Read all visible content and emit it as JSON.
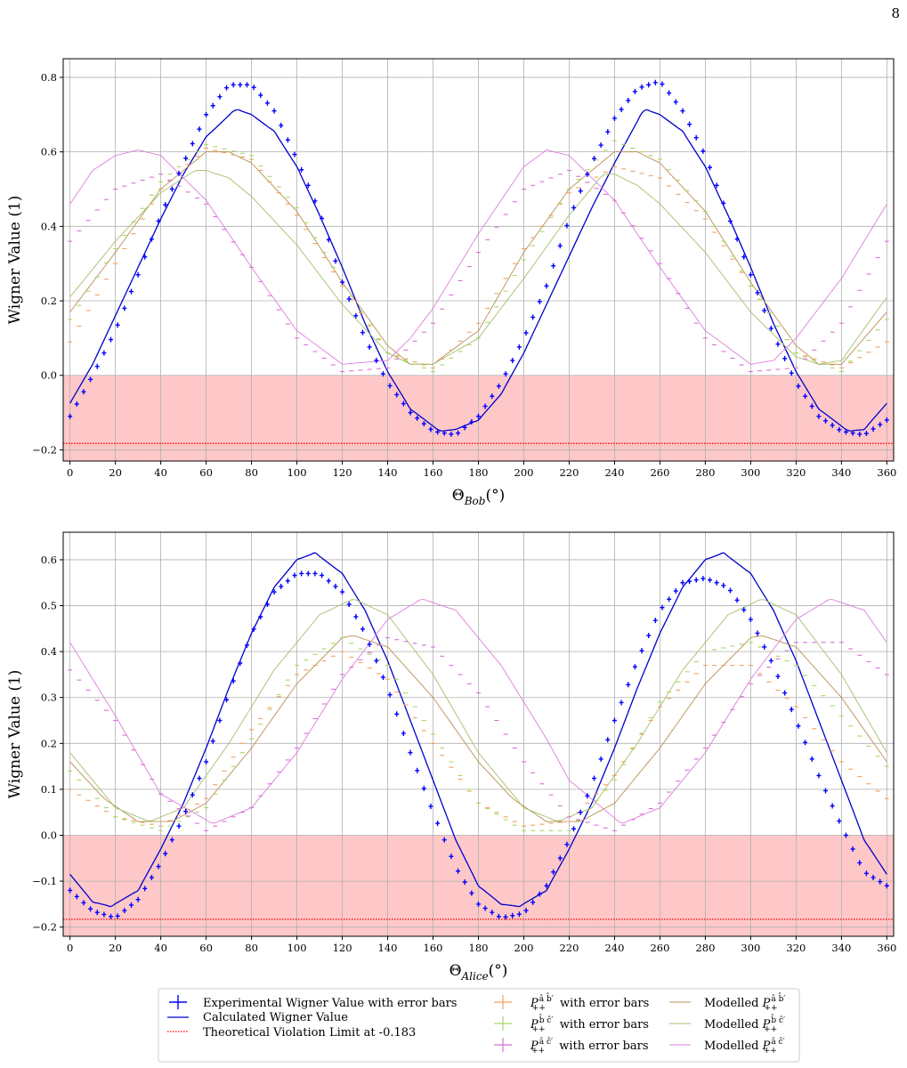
{
  "page": {
    "number": "8"
  },
  "colors": {
    "experimental": "#0000ff",
    "calculated": "#0000cc",
    "limit": "#ff0000",
    "violation_region": "#ffc8c8",
    "ab": "#f0a060",
    "bc": "#a8d860",
    "ac": "#d86fd8",
    "model_ab": "#b8904f",
    "model_bc": "#a4bf6a",
    "model_ac": "#dd7ddd"
  },
  "legend": {
    "experimental": "Experimental Wigner Value with error bars",
    "calculated": "Calculated Wigner Value",
    "limit": "Theoretical Violation Limit at -0.183",
    "ab_points": " with error bars",
    "bc_points": " with error bars",
    "ac_points": " with error bars",
    "model_ab": "Modelled ",
    "model_bc": "Modelled ",
    "model_ac": "Modelled ",
    "p_ab": "â b̂′",
    "p_bc": "b̂ ĉ′",
    "p_ac": "â ĉ′"
  },
  "chart_data": [
    {
      "type": "line",
      "xlabel": "Θ",
      "xlabel_sub": "Bob",
      "xlabel_unit": "(°)",
      "ylabel": "Wigner Value (1)",
      "xlim": [
        -3,
        363
      ],
      "ylim": [
        -0.23,
        0.85
      ],
      "xticks": [
        0,
        20,
        40,
        60,
        80,
        100,
        120,
        140,
        160,
        180,
        200,
        220,
        240,
        260,
        280,
        300,
        320,
        340,
        360
      ],
      "yticks": [
        -0.2,
        0.0,
        0.2,
        0.4,
        0.6,
        0.8
      ],
      "ytick_labels": [
        "−0.2",
        "0.0",
        "0.2",
        "0.4",
        "0.6",
        "0.8"
      ],
      "grid": true,
      "violation_region": [
        -0.23,
        0.0
      ],
      "violation_limit": -0.183,
      "series": [
        {
          "key": "calculated",
          "kind": "line",
          "x": [
            0,
            10,
            20,
            30,
            40,
            50,
            60,
            73,
            80,
            90,
            100,
            110,
            120,
            130,
            140,
            150,
            163,
            170,
            180,
            190,
            200,
            210,
            220,
            230,
            240,
            253,
            260,
            270,
            280,
            290,
            300,
            310,
            320,
            330,
            343,
            350,
            360
          ],
          "y": [
            -0.075,
            0.03,
            0.16,
            0.29,
            0.42,
            0.54,
            0.64,
            0.715,
            0.7,
            0.655,
            0.56,
            0.43,
            0.29,
            0.14,
            0.01,
            -0.09,
            -0.15,
            -0.145,
            -0.12,
            -0.05,
            0.06,
            0.19,
            0.32,
            0.45,
            0.57,
            0.715,
            0.7,
            0.655,
            0.56,
            0.43,
            0.29,
            0.14,
            0.01,
            -0.09,
            -0.15,
            -0.145,
            -0.075
          ]
        },
        {
          "key": "model_ab",
          "kind": "line",
          "x": [
            0,
            20,
            40,
            60,
            70,
            80,
            100,
            120,
            140,
            150,
            160,
            180,
            200,
            220,
            240,
            250,
            260,
            280,
            300,
            320,
            330,
            340,
            360
          ],
          "y": [
            0.17,
            0.33,
            0.5,
            0.6,
            0.6,
            0.57,
            0.44,
            0.25,
            0.08,
            0.03,
            0.03,
            0.12,
            0.33,
            0.5,
            0.6,
            0.6,
            0.57,
            0.44,
            0.25,
            0.08,
            0.03,
            0.03,
            0.17
          ]
        },
        {
          "key": "model_bc",
          "kind": "line",
          "x": [
            0,
            20,
            40,
            55,
            60,
            70,
            80,
            100,
            120,
            140,
            150,
            160,
            180,
            200,
            220,
            235,
            240,
            250,
            260,
            280,
            300,
            320,
            330,
            340,
            360
          ],
          "y": [
            0.21,
            0.36,
            0.49,
            0.55,
            0.55,
            0.53,
            0.48,
            0.35,
            0.19,
            0.06,
            0.03,
            0.03,
            0.1,
            0.26,
            0.43,
            0.54,
            0.54,
            0.51,
            0.46,
            0.33,
            0.17,
            0.05,
            0.03,
            0.04,
            0.21
          ]
        },
        {
          "key": "model_ac",
          "kind": "line",
          "x": [
            0,
            10,
            20,
            30,
            40,
            60,
            80,
            100,
            120,
            140,
            150,
            160,
            180,
            200,
            210,
            220,
            240,
            260,
            280,
            300,
            310,
            320,
            340,
            360
          ],
          "y": [
            0.46,
            0.55,
            0.59,
            0.605,
            0.59,
            0.47,
            0.29,
            0.12,
            0.03,
            0.04,
            0.1,
            0.18,
            0.38,
            0.56,
            0.605,
            0.59,
            0.47,
            0.29,
            0.12,
            0.03,
            0.04,
            0.1,
            0.26,
            0.46
          ]
        },
        {
          "key": "ab",
          "kind": "errorbar",
          "x": [
            0,
            20,
            40,
            60,
            80,
            100,
            120,
            140,
            160,
            180,
            200,
            220,
            240,
            260,
            280,
            300,
            320,
            340,
            360
          ],
          "y": [
            0.09,
            0.3,
            0.5,
            0.61,
            0.58,
            0.43,
            0.24,
            0.06,
            0.02,
            0.14,
            0.34,
            0.49,
            0.56,
            0.53,
            0.42,
            0.24,
            0.06,
            0.02,
            0.09
          ]
        },
        {
          "key": "bc",
          "kind": "errorbar",
          "x": [
            0,
            20,
            40,
            60,
            80,
            100,
            120,
            140,
            160,
            180,
            200,
            220,
            240,
            260,
            280,
            300,
            320,
            340,
            360
          ],
          "y": [
            0.15,
            0.34,
            0.52,
            0.62,
            0.59,
            0.45,
            0.25,
            0.06,
            0.01,
            0.1,
            0.31,
            0.5,
            0.63,
            0.58,
            0.44,
            0.24,
            0.06,
            0.01,
            0.15
          ]
        },
        {
          "key": "ac",
          "kind": "errorbar",
          "x": [
            0,
            20,
            40,
            60,
            80,
            100,
            120,
            140,
            160,
            180,
            200,
            220,
            240,
            260,
            280,
            300,
            320,
            340,
            360
          ],
          "y": [
            0.36,
            0.5,
            0.54,
            0.46,
            0.29,
            0.1,
            0.01,
            0.02,
            0.14,
            0.33,
            0.5,
            0.55,
            0.47,
            0.3,
            0.1,
            0.01,
            0.02,
            0.14,
            0.36
          ]
        },
        {
          "key": "experimental",
          "kind": "errorbar",
          "x": [
            0,
            10,
            20,
            30,
            40,
            50,
            60,
            70,
            80,
            90,
            100,
            110,
            120,
            130,
            140,
            150,
            160,
            170,
            180,
            190,
            200,
            210,
            220,
            230,
            240,
            250,
            260,
            270,
            280,
            290,
            300,
            310,
            320,
            330,
            340,
            350,
            360
          ],
          "y": [
            -0.11,
            0.0,
            0.12,
            0.27,
            0.43,
            0.57,
            0.7,
            0.78,
            0.78,
            0.71,
            0.58,
            0.44,
            0.25,
            0.1,
            -0.02,
            -0.1,
            -0.15,
            -0.16,
            -0.11,
            -0.02,
            0.1,
            0.24,
            0.42,
            0.57,
            0.69,
            0.77,
            0.79,
            0.71,
            0.59,
            0.43,
            0.27,
            0.11,
            -0.02,
            -0.11,
            -0.15,
            -0.16,
            -0.12
          ]
        }
      ]
    },
    {
      "type": "line",
      "xlabel": "Θ",
      "xlabel_sub": "Alice",
      "xlabel_unit": "(°)",
      "ylabel": "Wigner Value (1)",
      "xlim": [
        -3,
        363
      ],
      "ylim": [
        -0.22,
        0.66
      ],
      "xticks": [
        0,
        20,
        40,
        60,
        80,
        100,
        120,
        140,
        160,
        180,
        200,
        220,
        240,
        260,
        280,
        300,
        320,
        340,
        360
      ],
      "yticks": [
        -0.2,
        -0.1,
        0.0,
        0.1,
        0.2,
        0.3,
        0.4,
        0.5,
        0.6
      ],
      "ytick_labels": [
        "−0.2",
        "−0.1",
        "0.0",
        "0.1",
        "0.2",
        "0.3",
        "0.4",
        "0.5",
        "0.6"
      ],
      "grid": true,
      "violation_region": [
        -0.22,
        0.0
      ],
      "violation_limit": -0.183,
      "series": [
        {
          "key": "calculated",
          "kind": "line",
          "x": [
            0,
            10,
            18,
            30,
            40,
            50,
            60,
            70,
            80,
            90,
            100,
            108,
            120,
            130,
            140,
            150,
            160,
            170,
            180,
            190,
            198,
            210,
            220,
            230,
            240,
            250,
            260,
            270,
            280,
            288,
            300,
            310,
            320,
            330,
            340,
            350,
            360
          ],
          "y": [
            -0.085,
            -0.145,
            -0.155,
            -0.12,
            -0.03,
            0.07,
            0.19,
            0.32,
            0.44,
            0.54,
            0.6,
            0.615,
            0.57,
            0.49,
            0.38,
            0.25,
            0.12,
            -0.01,
            -0.11,
            -0.15,
            -0.155,
            -0.12,
            -0.03,
            0.07,
            0.19,
            0.32,
            0.44,
            0.54,
            0.6,
            0.615,
            0.57,
            0.49,
            0.38,
            0.25,
            0.12,
            -0.01,
            -0.085
          ]
        },
        {
          "key": "model_ab",
          "kind": "line",
          "x": [
            0,
            15,
            30,
            45,
            60,
            80,
            100,
            120,
            125,
            140,
            160,
            180,
            195,
            210,
            225,
            240,
            260,
            280,
            300,
            305,
            320,
            340,
            360
          ],
          "y": [
            0.16,
            0.08,
            0.03,
            0.03,
            0.07,
            0.19,
            0.33,
            0.43,
            0.435,
            0.41,
            0.3,
            0.16,
            0.08,
            0.03,
            0.03,
            0.07,
            0.19,
            0.33,
            0.43,
            0.435,
            0.41,
            0.3,
            0.16
          ]
        },
        {
          "key": "model_bc",
          "kind": "line",
          "x": [
            0,
            20,
            35,
            50,
            70,
            90,
            110,
            125,
            140,
            160,
            180,
            200,
            215,
            230,
            250,
            270,
            290,
            305,
            320,
            340,
            360
          ],
          "y": [
            0.18,
            0.06,
            0.03,
            0.06,
            0.2,
            0.36,
            0.48,
            0.515,
            0.48,
            0.35,
            0.18,
            0.06,
            0.03,
            0.06,
            0.2,
            0.36,
            0.48,
            0.515,
            0.48,
            0.35,
            0.18
          ]
        },
        {
          "key": "model_ac",
          "kind": "line",
          "x": [
            0,
            20,
            40,
            63,
            80,
            100,
            120,
            140,
            155,
            170,
            190,
            210,
            220,
            243,
            260,
            280,
            300,
            320,
            335,
            350,
            360
          ],
          "y": [
            0.42,
            0.26,
            0.09,
            0.025,
            0.06,
            0.18,
            0.34,
            0.47,
            0.515,
            0.49,
            0.37,
            0.21,
            0.12,
            0.025,
            0.06,
            0.18,
            0.34,
            0.47,
            0.515,
            0.49,
            0.42
          ]
        },
        {
          "key": "ab",
          "kind": "errorbar",
          "x": [
            0,
            20,
            40,
            60,
            80,
            100,
            120,
            140,
            160,
            180,
            200,
            220,
            240,
            260,
            280,
            300,
            320,
            340,
            360
          ],
          "y": [
            0.1,
            0.04,
            0.02,
            0.08,
            0.23,
            0.35,
            0.4,
            0.34,
            0.2,
            0.07,
            0.02,
            0.03,
            0.13,
            0.28,
            0.37,
            0.37,
            0.28,
            0.16,
            0.08
          ]
        },
        {
          "key": "bc",
          "kind": "errorbar",
          "x": [
            0,
            20,
            40,
            60,
            80,
            100,
            120,
            140,
            160,
            180,
            200,
            220,
            240,
            260,
            280,
            300,
            320,
            340,
            360
          ],
          "y": [
            0.14,
            0.04,
            0.01,
            0.06,
            0.21,
            0.37,
            0.43,
            0.37,
            0.22,
            0.07,
            0.01,
            0.01,
            0.12,
            0.29,
            0.4,
            0.42,
            0.37,
            0.26,
            0.15
          ]
        },
        {
          "key": "ac",
          "kind": "errorbar",
          "x": [
            0,
            20,
            40,
            60,
            80,
            100,
            120,
            140,
            160,
            180,
            200,
            220,
            240,
            260,
            280,
            300,
            320,
            340,
            360
          ],
          "y": [
            0.36,
            0.25,
            0.09,
            0.01,
            0.06,
            0.19,
            0.35,
            0.43,
            0.41,
            0.31,
            0.16,
            0.04,
            0.01,
            0.07,
            0.19,
            0.33,
            0.42,
            0.42,
            0.35
          ]
        },
        {
          "key": "experimental",
          "kind": "errorbar",
          "x": [
            0,
            10,
            20,
            30,
            40,
            50,
            60,
            70,
            80,
            90,
            100,
            110,
            120,
            130,
            140,
            150,
            160,
            170,
            180,
            190,
            200,
            210,
            220,
            230,
            240,
            250,
            260,
            270,
            280,
            290,
            300,
            310,
            320,
            330,
            340,
            350,
            360
          ],
          "y": [
            -0.12,
            -0.165,
            -0.18,
            -0.14,
            -0.06,
            0.04,
            0.16,
            0.31,
            0.44,
            0.53,
            0.57,
            0.57,
            0.53,
            0.44,
            0.32,
            0.18,
            0.05,
            -0.07,
            -0.15,
            -0.18,
            -0.17,
            -0.11,
            -0.01,
            0.11,
            0.25,
            0.38,
            0.49,
            0.55,
            0.56,
            0.54,
            0.47,
            0.37,
            0.25,
            0.13,
            0.02,
            -0.08,
            -0.11
          ]
        }
      ]
    }
  ]
}
